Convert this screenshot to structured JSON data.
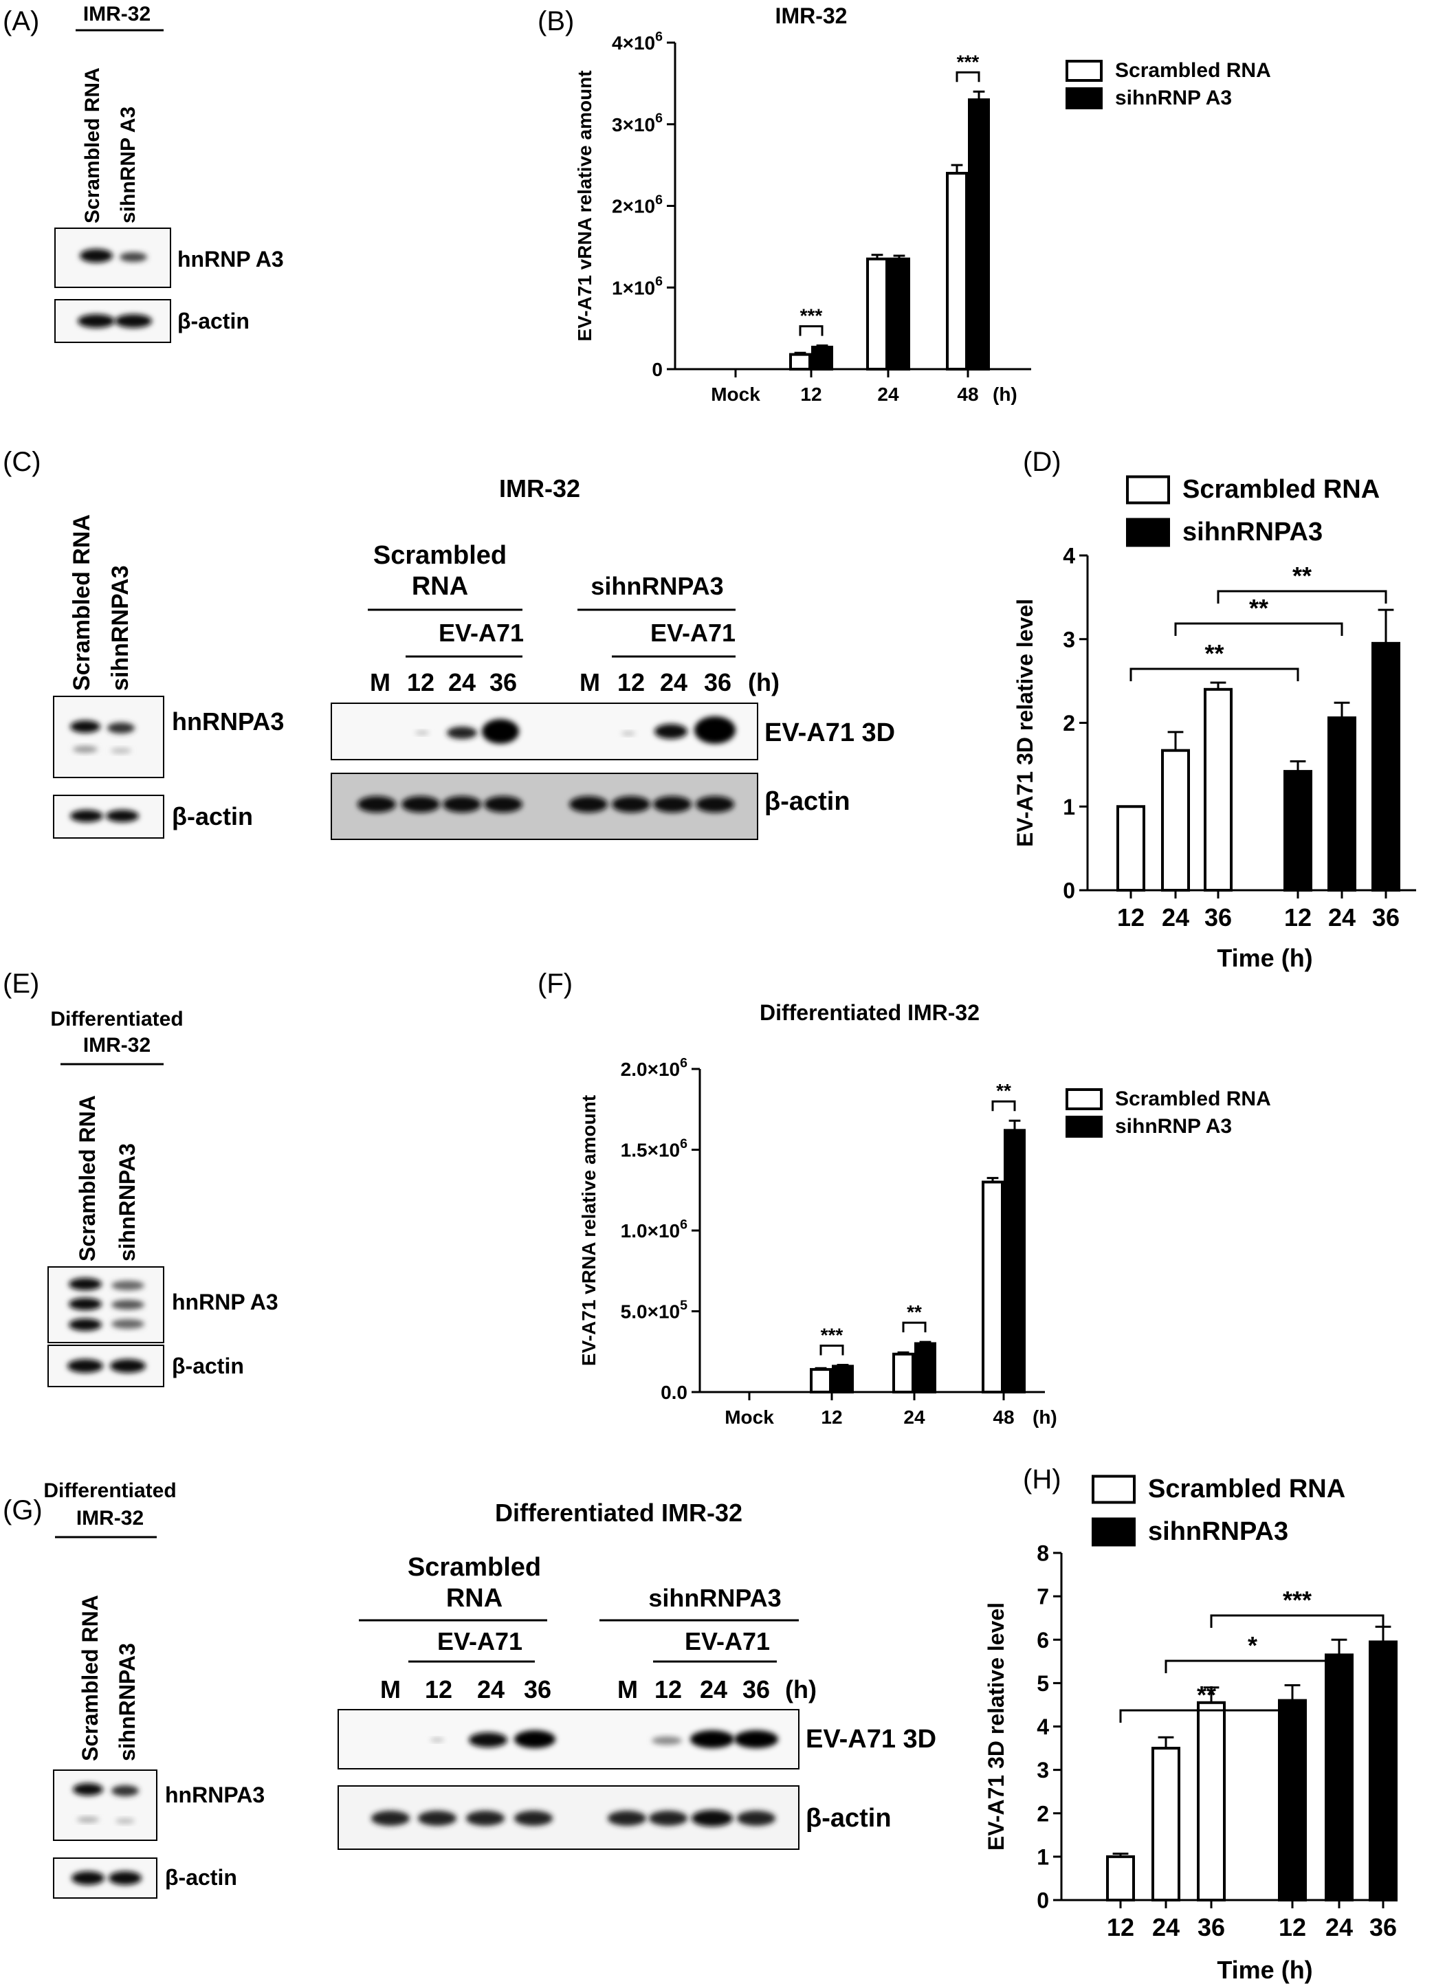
{
  "panel_letters": {
    "A": "(A)",
    "B": "(B)",
    "C": "(C)",
    "D": "(D)",
    "E": "(E)",
    "F": "(F)",
    "G": "(G)",
    "H": "(H)"
  },
  "blots": {
    "A": {
      "cell": "IMR-32",
      "lanes": [
        "Scrambled RNA",
        "sihnRNP A3"
      ],
      "bands": [
        "hnRNP A3",
        "β-actin"
      ]
    },
    "C_small": {
      "lanes": [
        "Scrambled RNA",
        "sihnRNPA3"
      ],
      "bands": [
        "hnRNPA3",
        "β-actin"
      ]
    },
    "C": {
      "title": "IMR-32",
      "group1_line1": "Scrambled",
      "group1_line2": "RNA",
      "group2": "sihnRNPA3",
      "virus": "EV-A71",
      "lanes1": [
        "M",
        "12",
        "24",
        "36"
      ],
      "lanes2": [
        "M",
        "12",
        "24",
        "36"
      ],
      "unit": "(h)",
      "bands": [
        "EV-A71 3D",
        "β-actin"
      ]
    },
    "E": {
      "cell_line1": "Differentiated",
      "cell_line2": "IMR-32",
      "lanes": [
        "Scrambled RNA",
        "sihnRNPA3"
      ],
      "bands": [
        "hnRNP A3",
        "β-actin"
      ]
    },
    "G_small": {
      "cell_line1": "Differentiated",
      "cell_line2": "IMR-32",
      "lanes": [
        "Scrambled RNA",
        "sihnRNPA3"
      ],
      "bands": [
        "hnRNPA3",
        "β-actin"
      ]
    },
    "G": {
      "title": "Differentiated IMR-32",
      "group1_line1": "Scrambled",
      "group1_line2": "RNA",
      "group2": "sihnRNPA3",
      "virus": "EV-A71",
      "lanes1": [
        "M",
        "12",
        "24",
        "36"
      ],
      "lanes2": [
        "M",
        "12",
        "24",
        "36"
      ],
      "unit": "(h)",
      "bands": [
        "EV-A71 3D",
        "β-actin"
      ]
    }
  },
  "chart_data": [
    {
      "id": "B",
      "type": "bar",
      "title": "IMR-32",
      "ylabel": "EV-A71 vRNA relative amount",
      "xlabel": "",
      "categories": [
        "Mock",
        "12",
        "24",
        "48"
      ],
      "x_unit": "(h)",
      "ylim": [
        0,
        4000000
      ],
      "yticks": [
        {
          "v": 0,
          "m": "0",
          "e": ""
        },
        {
          "v": 1000000,
          "m": "1×10",
          "e": "6"
        },
        {
          "v": 2000000,
          "m": "2×10",
          "e": "6"
        },
        {
          "v": 3000000,
          "m": "3×10",
          "e": "6"
        },
        {
          "v": 4000000,
          "m": "4×10",
          "e": "6"
        }
      ],
      "legend": [
        "Scrambled RNA",
        "sihnRNP A3"
      ],
      "legend_position": "top-right",
      "series": [
        {
          "name": "Scrambled RNA",
          "fill": "#ffffff",
          "values": [
            0,
            180000,
            1350000,
            2400000
          ],
          "errors": [
            0,
            20000,
            50000,
            100000
          ]
        },
        {
          "name": "sihnRNP A3",
          "fill": "#000000",
          "values": [
            0,
            270000,
            1350000,
            3300000
          ],
          "errors": [
            0,
            20000,
            40000,
            100000
          ]
        }
      ],
      "significance": [
        {
          "category": 1,
          "label": "***"
        },
        {
          "category": 3,
          "label": "***"
        }
      ]
    },
    {
      "id": "D",
      "type": "bar",
      "ylabel": "EV-A71 3D relative level",
      "xlabel": "Time (h)",
      "categories": [
        "12",
        "24",
        "36",
        "12",
        "24",
        "36"
      ],
      "ylim": [
        0,
        4
      ],
      "yticks": [
        {
          "v": 0,
          "m": "0"
        },
        {
          "v": 1,
          "m": "1"
        },
        {
          "v": 2,
          "m": "2"
        },
        {
          "v": 3,
          "m": "3"
        },
        {
          "v": 4,
          "m": "4"
        }
      ],
      "legend": [
        "Scrambled RNA",
        "sihnRNPA3"
      ],
      "legend_position": "top",
      "groups": [
        {
          "name": "Scrambled RNA",
          "fill": "#ffffff",
          "values": [
            1.0,
            1.67,
            2.4
          ],
          "errors": [
            0,
            0.22,
            0.08
          ]
        },
        {
          "name": "sihnRNPA3",
          "fill": "#000000",
          "values": [
            1.42,
            2.06,
            2.95
          ],
          "errors": [
            0.12,
            0.18,
            0.4
          ]
        }
      ],
      "significance": [
        {
          "from": 0,
          "to": 3,
          "label": "**"
        },
        {
          "from": 1,
          "to": 4,
          "label": "**"
        },
        {
          "from": 2,
          "to": 5,
          "label": "**"
        }
      ]
    },
    {
      "id": "F",
      "type": "bar",
      "title": "Differentiated IMR-32",
      "ylabel": "EV-A71 vRNA relative amount",
      "xlabel": "",
      "categories": [
        "Mock",
        "12",
        "24",
        "48"
      ],
      "x_unit": "(h)",
      "ylim": [
        0,
        2000000
      ],
      "yticks": [
        {
          "v": 0,
          "m": "0.0",
          "e": ""
        },
        {
          "v": 500000,
          "m": "5.0×10",
          "e": "5"
        },
        {
          "v": 1000000,
          "m": "1.0×10",
          "e": "6"
        },
        {
          "v": 1500000,
          "m": "1.5×10",
          "e": "6"
        },
        {
          "v": 2000000,
          "m": "2.0×10",
          "e": "6"
        }
      ],
      "legend": [
        "Scrambled RNA",
        "sihnRNP A3"
      ],
      "legend_position": "top-right",
      "series": [
        {
          "name": "Scrambled RNA",
          "fill": "#ffffff",
          "values": [
            0,
            140000,
            235000,
            1300000
          ],
          "errors": [
            0,
            8000,
            10000,
            25000
          ]
        },
        {
          "name": "sihnRNP A3",
          "fill": "#000000",
          "values": [
            0,
            160000,
            300000,
            1620000
          ],
          "errors": [
            0,
            8000,
            10000,
            60000
          ]
        }
      ],
      "significance": [
        {
          "category": 1,
          "label": "***"
        },
        {
          "category": 2,
          "label": "**"
        },
        {
          "category": 3,
          "label": "**"
        }
      ]
    },
    {
      "id": "H",
      "type": "bar",
      "ylabel": "EV-A71 3D relative level",
      "xlabel": "Time (h)",
      "categories": [
        "12",
        "24",
        "36",
        "12",
        "24",
        "36"
      ],
      "ylim": [
        0,
        8
      ],
      "yticks": [
        {
          "v": 0,
          "m": "0"
        },
        {
          "v": 1,
          "m": "1"
        },
        {
          "v": 2,
          "m": "2"
        },
        {
          "v": 3,
          "m": "3"
        },
        {
          "v": 4,
          "m": "4"
        },
        {
          "v": 5,
          "m": "5"
        },
        {
          "v": 6,
          "m": "6"
        },
        {
          "v": 7,
          "m": "7"
        },
        {
          "v": 8,
          "m": "8"
        }
      ],
      "legend": [
        "Scrambled RNA",
        "sihnRNPA3"
      ],
      "legend_position": "top",
      "groups": [
        {
          "name": "Scrambled RNA",
          "fill": "#ffffff",
          "values": [
            1.0,
            3.5,
            4.55
          ],
          "errors": [
            0.07,
            0.25,
            0.35
          ]
        },
        {
          "name": "sihnRNPA3",
          "fill": "#000000",
          "values": [
            4.6,
            5.65,
            5.95
          ],
          "errors": [
            0.35,
            0.35,
            0.35
          ]
        }
      ],
      "significance": [
        {
          "from": 0,
          "to": 3,
          "label": "**"
        },
        {
          "from": 1,
          "to": 4,
          "label": "*"
        },
        {
          "from": 2,
          "to": 5,
          "label": "***"
        }
      ]
    }
  ]
}
